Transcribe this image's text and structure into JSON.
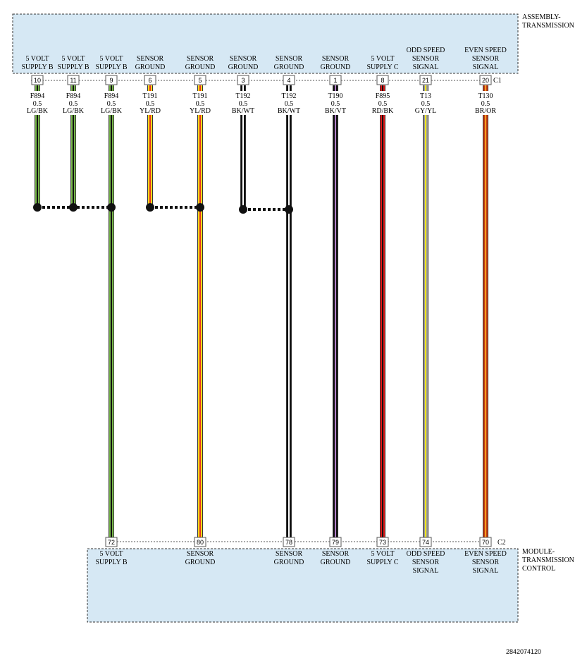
{
  "components": {
    "top": {
      "name_lines": [
        "ASSEMBLY-",
        "TRANSMISSION"
      ],
      "connector": "C1"
    },
    "bottom": {
      "name_lines": [
        "MODULE-",
        "TRANSMISSION",
        "CONTROL"
      ],
      "connector": "C2"
    }
  },
  "footer": {
    "ref": "2842074120"
  },
  "colors": {
    "LG/BK": {
      "base": "#78b84a",
      "stripe": "#111111"
    },
    "YL/RD": {
      "base": "#f2d81a",
      "stripe": "#e8321e"
    },
    "BK/WT": {
      "base": "#111111",
      "stripe": "#ffffff"
    },
    "BK/VT": {
      "base": "#111111",
      "stripe": "#b07cc6"
    },
    "RD/BK": {
      "base": "#e01a1a",
      "stripe": "#111111"
    },
    "GY/YL": {
      "base": "#9c9c9c",
      "stripe": "#f2e81a"
    },
    "BR/OR": {
      "base": "#c43d14",
      "stripe": "#f49a1e"
    }
  },
  "wires": [
    {
      "id": "w1",
      "top_pin": "10",
      "top_label": [
        "5 VOLT",
        "SUPPLY B"
      ],
      "circuit": "F894",
      "gauge": "0.5",
      "color": "LG/BK",
      "bottom_pin": null,
      "bottom_label": []
    },
    {
      "id": "w2",
      "top_pin": "11",
      "top_label": [
        "5 VOLT",
        "SUPPLY B"
      ],
      "circuit": "F894",
      "gauge": "0.5",
      "color": "LG/BK",
      "bottom_pin": null,
      "bottom_label": []
    },
    {
      "id": "w3",
      "top_pin": "9",
      "top_label": [
        "5 VOLT",
        "SUPPLY B"
      ],
      "circuit": "F894",
      "gauge": "0.5",
      "color": "LG/BK",
      "bottom_pin": "72",
      "bottom_label": [
        "5 VOLT",
        "SUPPLY B"
      ]
    },
    {
      "id": "w4",
      "top_pin": "6",
      "top_label": [
        "SENSOR",
        "GROUND"
      ],
      "circuit": "T191",
      "gauge": "0.5",
      "color": "YL/RD",
      "bottom_pin": null,
      "bottom_label": []
    },
    {
      "id": "w5",
      "top_pin": "5",
      "top_label": [
        "SENSOR",
        "GROUND"
      ],
      "circuit": "T191",
      "gauge": "0.5",
      "color": "YL/RD",
      "bottom_pin": "80",
      "bottom_label": [
        "SENSOR",
        "GROUND"
      ]
    },
    {
      "id": "w6",
      "top_pin": "3",
      "top_label": [
        "SENSOR",
        "GROUND"
      ],
      "circuit": "T192",
      "gauge": "0.5",
      "color": "BK/WT",
      "bottom_pin": null,
      "bottom_label": []
    },
    {
      "id": "w7",
      "top_pin": "4",
      "top_label": [
        "SENSOR",
        "GROUND"
      ],
      "circuit": "T192",
      "gauge": "0.5",
      "color": "BK/WT",
      "bottom_pin": "78",
      "bottom_label": [
        "SENSOR",
        "GROUND"
      ]
    },
    {
      "id": "w8",
      "top_pin": "1",
      "top_label": [
        "SENSOR",
        "GROUND"
      ],
      "circuit": "T190",
      "gauge": "0.5",
      "color": "BK/VT",
      "bottom_pin": "79",
      "bottom_label": [
        "SENSOR",
        "GROUND"
      ]
    },
    {
      "id": "w9",
      "top_pin": "8",
      "top_label": [
        "5 VOLT",
        "SUPPLY C"
      ],
      "circuit": "F895",
      "gauge": "0.5",
      "color": "RD/BK",
      "bottom_pin": "73",
      "bottom_label": [
        "5 VOLT",
        "SUPPLY C"
      ]
    },
    {
      "id": "w10",
      "top_pin": "21",
      "top_label": [
        "ODD SPEED",
        "SENSOR",
        "SIGNAL"
      ],
      "circuit": "T13",
      "gauge": "0.5",
      "color": "GY/YL",
      "bottom_pin": "74",
      "bottom_label": [
        "ODD SPEED",
        "SENSOR",
        "SIGNAL"
      ]
    },
    {
      "id": "w11",
      "top_pin": "20",
      "top_label": [
        "EVEN SPEED",
        "SENSOR",
        "SIGNAL"
      ],
      "circuit": "T130",
      "gauge": "0.5",
      "color": "BR/OR",
      "bottom_pin": "70",
      "bottom_label": [
        "EVEN SPEED",
        "SENSOR",
        "SIGNAL"
      ]
    }
  ],
  "splices": [
    {
      "wires": [
        "w1",
        "w2",
        "w3"
      ]
    },
    {
      "wires": [
        "w4",
        "w5"
      ]
    },
    {
      "wires": [
        "w6",
        "w7"
      ]
    }
  ]
}
